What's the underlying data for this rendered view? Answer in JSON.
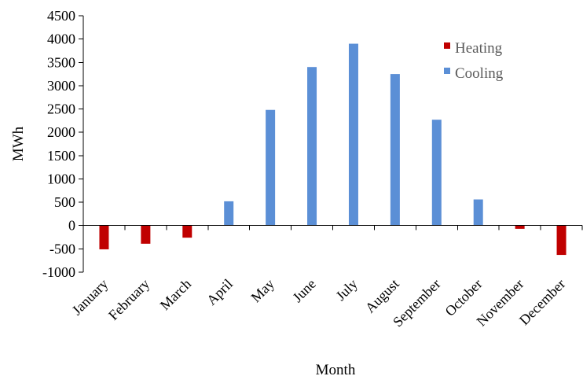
{
  "chart_data": {
    "type": "bar",
    "categories": [
      "January",
      "February",
      "March",
      "April",
      "May",
      "June",
      "July",
      "August",
      "September",
      "October",
      "November",
      "December"
    ],
    "series": [
      {
        "name": "Heating",
        "color": "#c00000",
        "values": [
          -510,
          -390,
          -260,
          0,
          0,
          0,
          0,
          0,
          0,
          0,
          -70,
          -630
        ]
      },
      {
        "name": "Cooling",
        "color": "#5b8fd6",
        "values": [
          0,
          0,
          0,
          520,
          2480,
          3400,
          3900,
          3250,
          2270,
          560,
          0,
          0
        ]
      }
    ],
    "title": "",
    "xlabel": "Month",
    "ylabel": "MWh",
    "ylim": [
      -1000,
      4500
    ],
    "yticks": [
      4500,
      4000,
      3500,
      3000,
      2500,
      2000,
      1500,
      1000,
      500,
      0,
      -500,
      -1000
    ],
    "grid": false,
    "legend_position": "top-right"
  }
}
